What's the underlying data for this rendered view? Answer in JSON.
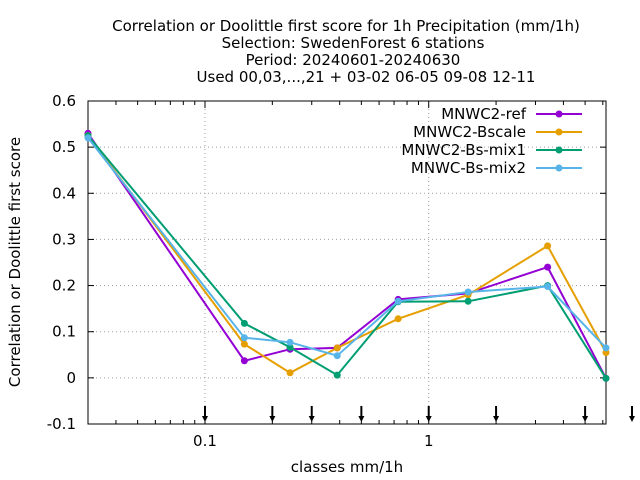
{
  "title_lines": [
    "Correlation or Doolittle first score  for 1h Precipitation (mm/1h)",
    "Selection: SwedenForest      6 stations",
    "Period: 20240601-20240630",
    "Used 00,03,...,21 + 03-02 06-05 09-08 12-11"
  ],
  "chart_data": {
    "type": "line",
    "xlabel": "classes mm/1h",
    "ylabel": "Correlation or Doolittle first score",
    "x_scale": "log",
    "xlim": [
      0.03,
      6.2
    ],
    "ylim": [
      -0.1,
      0.6
    ],
    "x_ticks": [
      {
        "value": 0.1,
        "label": "0.1"
      },
      {
        "value": 1,
        "label": "1"
      }
    ],
    "y_ticks": [
      {
        "value": -0.1,
        "label": "-0.1"
      },
      {
        "value": 0,
        "label": "0"
      },
      {
        "value": 0.1,
        "label": "0.1"
      },
      {
        "value": 0.2,
        "label": "0.2"
      },
      {
        "value": 0.3,
        "label": "0.3"
      },
      {
        "value": 0.4,
        "label": "0.4"
      },
      {
        "value": 0.5,
        "label": "0.5"
      },
      {
        "value": 0.6,
        "label": "0.6"
      }
    ],
    "grid": true,
    "legend_position": "top-right",
    "class_markers_x": [
      0.1,
      0.2,
      0.3,
      0.5,
      1,
      2,
      5,
      10
    ],
    "x": [
      0.03,
      0.15,
      0.24,
      0.39,
      0.73,
      1.5,
      3.4,
      6.2
    ],
    "series": [
      {
        "name": "MNWC2-ref",
        "color": "#9400d3",
        "values": [
          0.53,
          0.037,
          0.062,
          0.065,
          0.17,
          0.183,
          0.24,
          -0.001
        ]
      },
      {
        "name": "MNWC2-Bscale",
        "color": "#e69f00",
        "values": [
          0.525,
          0.073,
          0.011,
          0.065,
          0.128,
          0.18,
          0.286,
          0.055
        ]
      },
      {
        "name": "MNWC2-Bs-mix1",
        "color": "#009e73",
        "values": [
          0.525,
          0.118,
          0.066,
          0.006,
          0.165,
          0.166,
          0.2,
          -0.001
        ]
      },
      {
        "name": "MNWC-Bs-mix2",
        "color": "#56b4e9",
        "values": [
          0.52,
          0.087,
          0.077,
          0.048,
          0.166,
          0.186,
          0.198,
          0.065
        ]
      }
    ]
  }
}
